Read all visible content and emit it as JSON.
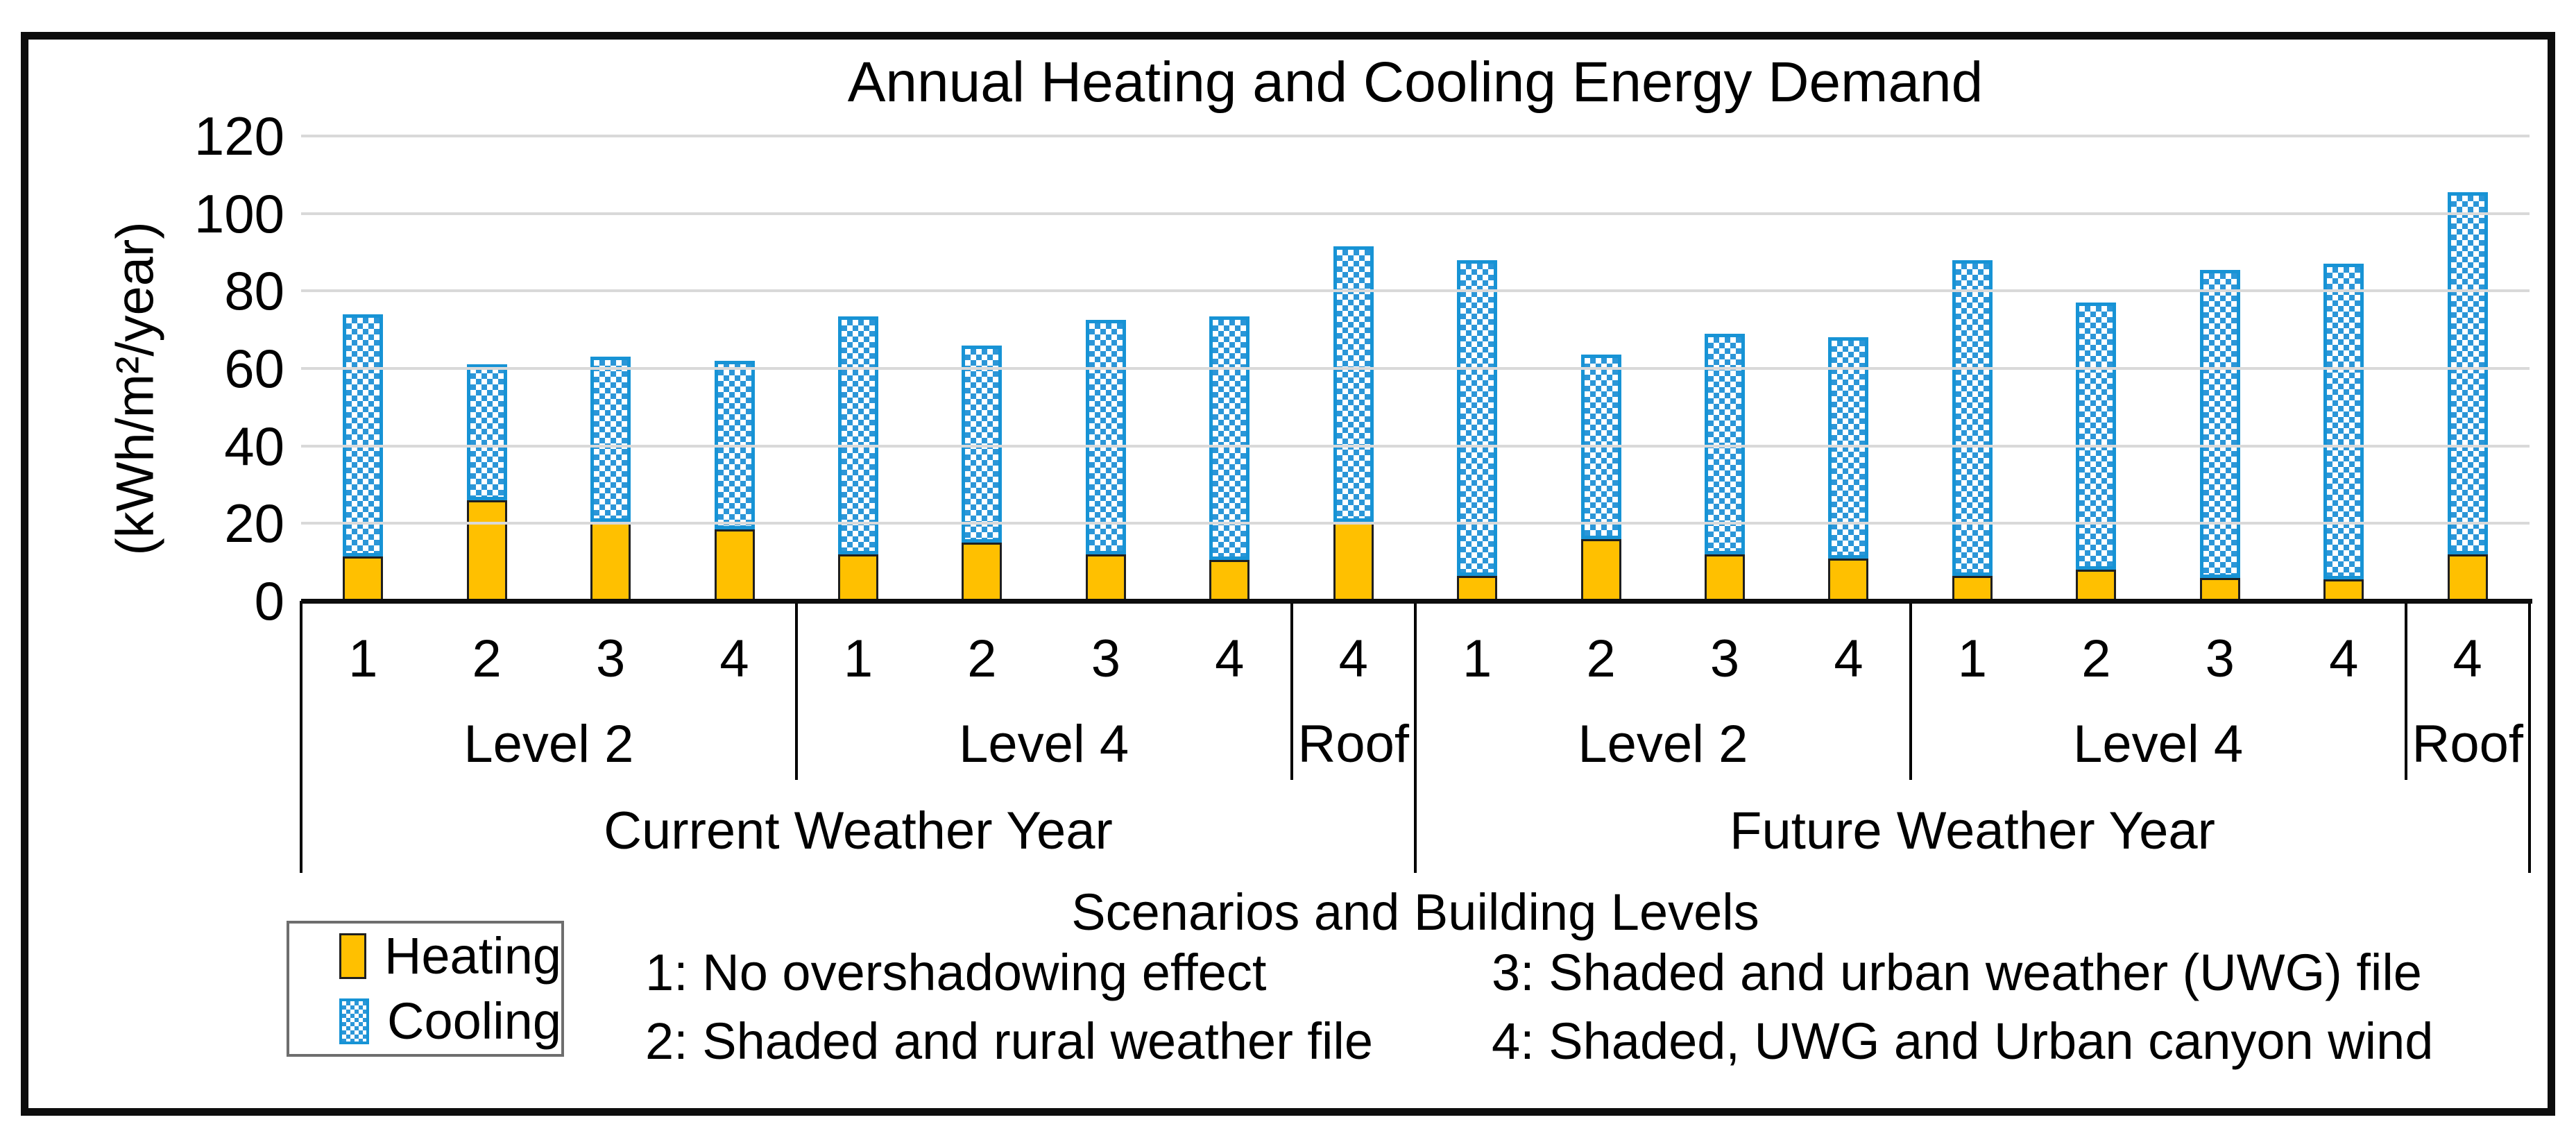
{
  "title": "Annual Heating and Cooling Energy Demand",
  "y_axis": {
    "title": "(kWh/m²/year)",
    "ticks": [
      0,
      20,
      40,
      60,
      80,
      100,
      120
    ],
    "max": 120
  },
  "x_axis": {
    "title": "Scenarios and Building Levels"
  },
  "legend": [
    {
      "label": "Heating",
      "color": "#FFC000",
      "pattern": "solid"
    },
    {
      "label": "Cooling",
      "color": "#2B96D8",
      "pattern": "checker-dots"
    }
  ],
  "notes": [
    "1: No overshadowing effect",
    "2: Shaded and rural weather file",
    "3: Shaded and urban weather (UWG) file",
    "4: Shaded, UWG and Urban canyon wind"
  ],
  "chart_data": {
    "type": "bar",
    "stacked": true,
    "ylim": [
      0,
      120
    ],
    "grid": true,
    "series_order": [
      "Heating",
      "Cooling"
    ],
    "groups": [
      {
        "label": "Current Weather Year",
        "levels": [
          {
            "label": "Level 2",
            "scenarios": [
              "1",
              "2",
              "3",
              "4"
            ],
            "heating": [
              11.5,
              26,
              20.5,
              18.5
            ],
            "cooling": [
              62.5,
              35,
              42.5,
              43.5
            ]
          },
          {
            "label": "Level 4",
            "scenarios": [
              "1",
              "2",
              "3",
              "4"
            ],
            "heating": [
              12,
              15,
              12,
              10.5
            ],
            "cooling": [
              61.5,
              51,
              60.5,
              63
            ]
          },
          {
            "label": "Roof",
            "scenarios": [
              "4"
            ],
            "heating": [
              20.5
            ],
            "cooling": [
              71
            ]
          }
        ]
      },
      {
        "label": "Future Weather Year",
        "levels": [
          {
            "label": "Level 2",
            "scenarios": [
              "1",
              "2",
              "3",
              "4"
            ],
            "heating": [
              6.5,
              16,
              12,
              11
            ],
            "cooling": [
              81.5,
              47.5,
              57,
              57
            ]
          },
          {
            "label": "Level 4",
            "scenarios": [
              "1",
              "2",
              "3",
              "4"
            ],
            "heating": [
              6.5,
              8,
              6,
              5.5
            ],
            "cooling": [
              81.5,
              69,
              79.5,
              81.5
            ]
          },
          {
            "label": "Roof",
            "scenarios": [
              "4"
            ],
            "heating": [
              12
            ],
            "cooling": [
              93.5
            ]
          }
        ]
      }
    ]
  }
}
